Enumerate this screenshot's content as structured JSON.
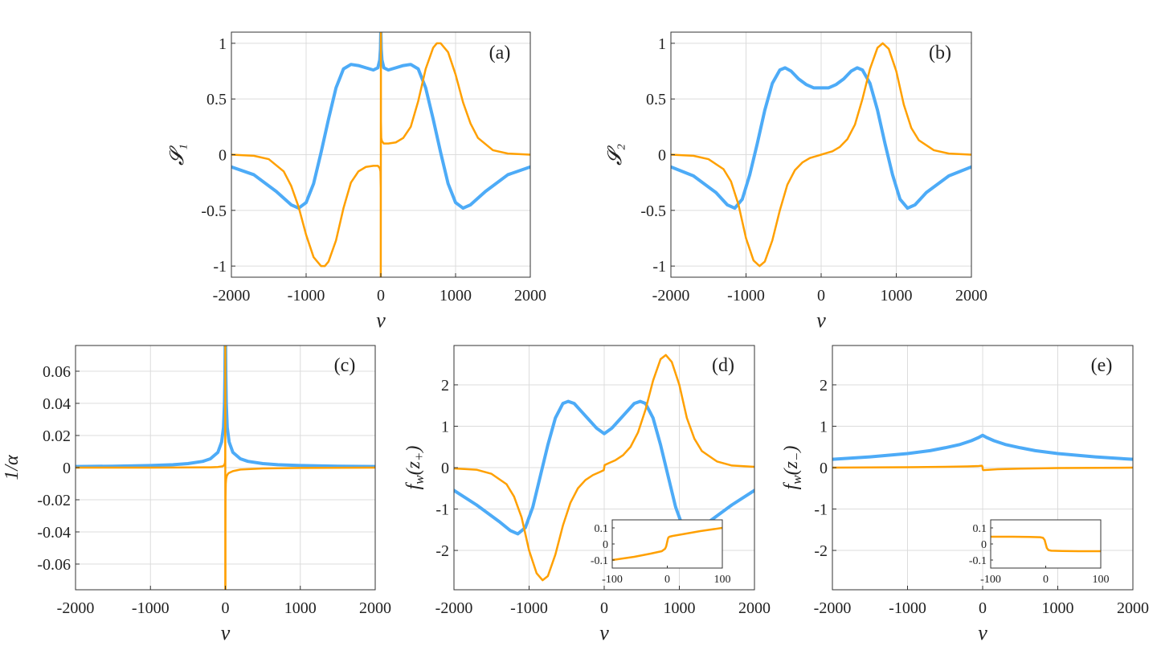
{
  "colors": {
    "series1": "#4dabf7",
    "series2": "#ffa000",
    "grid": "#dcdcdc",
    "frame": "#333333"
  },
  "chart_data": [
    {
      "id": "a",
      "type": "line",
      "panel_label": "(a)",
      "xlabel": "ν",
      "ylabel": "𝓢₁",
      "xlim": [
        -2000,
        2000
      ],
      "ylim": [
        -1.1,
        1.1
      ],
      "xticks": [
        -2000,
        -1000,
        0,
        1000,
        2000
      ],
      "xtick_labels": [
        "-2000",
        "-1000",
        "0",
        "1000",
        "2000"
      ],
      "yticks": [
        -1,
        -0.5,
        0,
        0.5,
        1
      ],
      "ytick_labels": [
        "-1",
        "-0.5",
        "0",
        "0.5",
        "1"
      ],
      "grid": true,
      "series": [
        {
          "color": "series1",
          "width": 4,
          "x": [
            -2000,
            -1700,
            -1400,
            -1200,
            -1100,
            -1000,
            -900,
            -800,
            -700,
            -600,
            -500,
            -400,
            -300,
            -200,
            -100,
            -40,
            -15,
            -5,
            -1,
            1,
            5,
            15,
            40,
            100,
            200,
            300,
            400,
            500,
            600,
            700,
            800,
            900,
            1000,
            1100,
            1200,
            1400,
            1700,
            2000
          ],
          "y": [
            -0.11,
            -0.18,
            -0.33,
            -0.45,
            -0.48,
            -0.43,
            -0.26,
            0.02,
            0.32,
            0.6,
            0.77,
            0.81,
            0.8,
            0.78,
            0.76,
            0.78,
            0.85,
            0.95,
            1.1,
            1.1,
            0.95,
            0.85,
            0.78,
            0.76,
            0.78,
            0.8,
            0.81,
            0.77,
            0.6,
            0.32,
            0.02,
            -0.26,
            -0.43,
            -0.48,
            -0.45,
            -0.33,
            -0.18,
            -0.11
          ]
        },
        {
          "color": "series2",
          "width": 2.5,
          "x": [
            -2000,
            -1700,
            -1500,
            -1300,
            -1200,
            -1100,
            -1000,
            -900,
            -800,
            -750,
            -700,
            -600,
            -500,
            -400,
            -300,
            -200,
            -100,
            -40,
            -15,
            -5,
            -1,
            -1,
            1,
            1,
            5,
            15,
            40,
            100,
            200,
            300,
            400,
            500,
            600,
            700,
            750,
            800,
            900,
            1000,
            1100,
            1200,
            1300,
            1500,
            1700,
            2000
          ],
          "y": [
            0.0,
            -0.01,
            -0.04,
            -0.15,
            -0.28,
            -0.47,
            -0.72,
            -0.92,
            -1.0,
            -1.0,
            -0.96,
            -0.77,
            -0.48,
            -0.25,
            -0.15,
            -0.11,
            -0.1,
            -0.1,
            -0.12,
            -0.15,
            -0.3,
            -1.1,
            1.1,
            0.3,
            0.15,
            0.12,
            0.1,
            0.1,
            0.11,
            0.15,
            0.25,
            0.48,
            0.77,
            0.96,
            1.0,
            1.0,
            0.92,
            0.72,
            0.47,
            0.28,
            0.15,
            0.04,
            0.01,
            0.0
          ]
        }
      ]
    },
    {
      "id": "b",
      "type": "line",
      "panel_label": "(b)",
      "xlabel": "ν",
      "ylabel": "𝓢₂",
      "xlim": [
        -2000,
        2000
      ],
      "ylim": [
        -1.1,
        1.1
      ],
      "xticks": [
        -2000,
        -1000,
        0,
        1000,
        2000
      ],
      "xtick_labels": [
        "-2000",
        "-1000",
        "0",
        "1000",
        "2000"
      ],
      "yticks": [
        -1,
        -0.5,
        0,
        0.5,
        1
      ],
      "ytick_labels": [
        "-1",
        "-0.5",
        "0",
        "0.5",
        "1"
      ],
      "grid": true,
      "series": [
        {
          "color": "series1",
          "width": 4,
          "x": [
            -2000,
            -1700,
            -1400,
            -1250,
            -1150,
            -1050,
            -950,
            -850,
            -750,
            -650,
            -550,
            -480,
            -400,
            -300,
            -200,
            -100,
            0,
            100,
            200,
            300,
            400,
            480,
            550,
            650,
            750,
            850,
            950,
            1050,
            1150,
            1250,
            1400,
            1700,
            2000
          ],
          "y": [
            -0.11,
            -0.19,
            -0.34,
            -0.45,
            -0.48,
            -0.4,
            -0.18,
            0.1,
            0.4,
            0.64,
            0.76,
            0.78,
            0.75,
            0.68,
            0.63,
            0.6,
            0.6,
            0.6,
            0.63,
            0.68,
            0.75,
            0.78,
            0.76,
            0.64,
            0.4,
            0.1,
            -0.18,
            -0.4,
            -0.48,
            -0.45,
            -0.34,
            -0.19,
            -0.11
          ]
        },
        {
          "color": "series2",
          "width": 2.5,
          "x": [
            -2000,
            -1700,
            -1500,
            -1300,
            -1200,
            -1100,
            -1000,
            -900,
            -820,
            -750,
            -650,
            -550,
            -450,
            -350,
            -250,
            -150,
            -50,
            0,
            50,
            150,
            250,
            350,
            450,
            550,
            650,
            750,
            820,
            900,
            1000,
            1100,
            1200,
            1300,
            1500,
            1700,
            2000
          ],
          "y": [
            0.0,
            -0.01,
            -0.04,
            -0.13,
            -0.24,
            -0.45,
            -0.75,
            -0.95,
            -1.0,
            -0.96,
            -0.77,
            -0.5,
            -0.27,
            -0.14,
            -0.07,
            -0.03,
            -0.01,
            0.0,
            0.01,
            0.03,
            0.07,
            0.14,
            0.27,
            0.5,
            0.77,
            0.96,
            1.0,
            0.95,
            0.75,
            0.45,
            0.24,
            0.13,
            0.04,
            0.01,
            0.0
          ]
        }
      ]
    },
    {
      "id": "c",
      "type": "line",
      "panel_label": "(c)",
      "xlabel": "ν",
      "ylabel": "1/α",
      "xlim": [
        -2000,
        2000
      ],
      "ylim": [
        -0.076,
        0.076
      ],
      "xticks": [
        -2000,
        -1000,
        0,
        1000,
        2000
      ],
      "xtick_labels": [
        "-2000",
        "-1000",
        "0",
        "1000",
        "2000"
      ],
      "yticks": [
        -0.06,
        -0.04,
        -0.02,
        0,
        0.02,
        0.04,
        0.06
      ],
      "ytick_labels": [
        "-0.06",
        "-0.04",
        "-0.02",
        "0",
        "0.02",
        "0.04",
        "0.06"
      ],
      "grid": true,
      "series": [
        {
          "color": "series1",
          "width": 4,
          "x": [
            -2000,
            -1500,
            -1000,
            -700,
            -500,
            -300,
            -200,
            -100,
            -50,
            -25,
            -12,
            -6,
            -3,
            -1,
            1,
            3,
            6,
            12,
            25,
            50,
            100,
            200,
            300,
            500,
            700,
            1000,
            1500,
            2000
          ],
          "y": [
            0.0007,
            0.0009,
            0.0013,
            0.0018,
            0.0025,
            0.0039,
            0.0055,
            0.0095,
            0.016,
            0.025,
            0.04,
            0.058,
            0.076,
            0.076,
            0.076,
            0.076,
            0.058,
            0.04,
            0.025,
            0.016,
            0.0095,
            0.0055,
            0.0039,
            0.0025,
            0.0018,
            0.0013,
            0.0009,
            0.0007
          ]
        },
        {
          "color": "series2",
          "width": 2.5,
          "x": [
            -2000,
            -1000,
            -500,
            -200,
            -100,
            -40,
            -15,
            -5,
            -2,
            -1,
            -1,
            1,
            1,
            2,
            5,
            10,
            20,
            40,
            100,
            200,
            500,
            1000,
            2000
          ],
          "y": [
            0.0,
            0.0,
            0.0001,
            0.0002,
            0.0004,
            0.0008,
            0.0015,
            0.003,
            0.006,
            0.076,
            -0.076,
            -0.076,
            -0.04,
            -0.018,
            -0.01,
            -0.007,
            -0.005,
            -0.0035,
            -0.0022,
            -0.0012,
            -0.0005,
            -0.0002,
            0.0
          ]
        }
      ]
    },
    {
      "id": "d",
      "type": "line",
      "panel_label": "(d)",
      "xlabel": "ν",
      "ylabel": "f_w(z_+)",
      "xlim": [
        -2000,
        2000
      ],
      "ylim": [
        -2.95,
        2.95
      ],
      "xticks": [
        -2000,
        -1000,
        0,
        1000,
        2000
      ],
      "xtick_labels": [
        "-2000",
        "-1000",
        "0",
        "1000",
        "2000"
      ],
      "yticks": [
        -2,
        -1,
        0,
        1,
        2
      ],
      "ytick_labels": [
        "-2",
        "-1",
        "0",
        "1",
        "2"
      ],
      "grid": true,
      "series": [
        {
          "color": "series1",
          "width": 4,
          "x": [
            -2000,
            -1700,
            -1400,
            -1250,
            -1150,
            -1050,
            -950,
            -850,
            -750,
            -650,
            -550,
            -480,
            -400,
            -300,
            -200,
            -100,
            0,
            100,
            200,
            300,
            400,
            480,
            550,
            650,
            750,
            850,
            950,
            1050,
            1150,
            1250,
            1400,
            1700,
            2000
          ],
          "y": [
            -0.55,
            -0.9,
            -1.3,
            -1.52,
            -1.6,
            -1.45,
            -0.95,
            -0.2,
            0.55,
            1.2,
            1.55,
            1.6,
            1.55,
            1.35,
            1.15,
            0.95,
            0.82,
            0.95,
            1.15,
            1.35,
            1.55,
            1.6,
            1.55,
            1.2,
            0.55,
            -0.2,
            -0.95,
            -1.45,
            -1.6,
            -1.52,
            -1.3,
            -0.9,
            -0.55
          ]
        },
        {
          "color": "series2",
          "width": 2.5,
          "x": [
            -2000,
            -1700,
            -1500,
            -1300,
            -1200,
            -1100,
            -1000,
            -900,
            -820,
            -750,
            -650,
            -550,
            -450,
            -350,
            -250,
            -150,
            -50,
            -5,
            5,
            50,
            150,
            250,
            350,
            450,
            550,
            650,
            750,
            820,
            900,
            1000,
            1100,
            1200,
            1300,
            1500,
            1700,
            2000
          ],
          "y": [
            -0.02,
            -0.05,
            -0.15,
            -0.4,
            -0.7,
            -1.2,
            -2.0,
            -2.55,
            -2.72,
            -2.62,
            -2.1,
            -1.4,
            -0.85,
            -0.5,
            -0.3,
            -0.18,
            -0.1,
            -0.06,
            0.06,
            0.1,
            0.18,
            0.3,
            0.5,
            0.85,
            1.4,
            2.1,
            2.62,
            2.72,
            2.55,
            2.0,
            1.2,
            0.7,
            0.4,
            0.15,
            0.05,
            0.02
          ]
        }
      ],
      "inset": {
        "xlim": [
          -100,
          100
        ],
        "ylim": [
          -0.15,
          0.15
        ],
        "xticks": [
          -100,
          0,
          100
        ],
        "xtick_labels": [
          "-100",
          "0",
          "100"
        ],
        "yticks": [
          -0.1,
          0,
          0.1
        ],
        "ytick_labels": [
          "-0.1",
          "0",
          "0.1"
        ],
        "series": [
          {
            "color": "series2",
            "width": 2.5,
            "x": [
              -100,
              -60,
              -30,
              -10,
              -4,
              -2,
              -1,
              1,
              2,
              4,
              10,
              30,
              60,
              100
            ],
            "y": [
              -0.1,
              -0.08,
              -0.06,
              -0.045,
              -0.03,
              -0.015,
              0.0,
              0.03,
              0.04,
              0.045,
              0.05,
              0.062,
              0.08,
              0.1
            ]
          }
        ]
      }
    },
    {
      "id": "e",
      "type": "line",
      "panel_label": "(e)",
      "xlabel": "ν",
      "ylabel": "f_w(z_−)",
      "xlim": [
        -2000,
        2000
      ],
      "ylim": [
        -2.95,
        2.95
      ],
      "xticks": [
        -2000,
        -1000,
        0,
        1000,
        2000
      ],
      "xtick_labels": [
        "-2000",
        "-1000",
        "0",
        "1000",
        "2000"
      ],
      "yticks": [
        -2,
        -1,
        0,
        1,
        2
      ],
      "ytick_labels": [
        "-2",
        "-1",
        "0",
        "1",
        "2"
      ],
      "grid": true,
      "series": [
        {
          "color": "series1",
          "width": 4,
          "x": [
            -2000,
            -1500,
            -1000,
            -700,
            -500,
            -300,
            -150,
            -50,
            0,
            50,
            150,
            300,
            500,
            700,
            1000,
            1500,
            2000
          ],
          "y": [
            0.2,
            0.26,
            0.34,
            0.41,
            0.48,
            0.56,
            0.65,
            0.73,
            0.78,
            0.73,
            0.65,
            0.56,
            0.48,
            0.41,
            0.34,
            0.26,
            0.2
          ]
        },
        {
          "color": "series2",
          "width": 2.5,
          "x": [
            -2000,
            -1000,
            -500,
            -200,
            -50,
            -10,
            -2,
            2,
            10,
            50,
            200,
            500,
            1000,
            2000
          ],
          "y": [
            0.0,
            0.01,
            0.02,
            0.03,
            0.04,
            0.045,
            0.03,
            -0.05,
            -0.06,
            -0.055,
            -0.04,
            -0.025,
            -0.01,
            0.0
          ]
        }
      ],
      "inset": {
        "xlim": [
          -100,
          100
        ],
        "ylim": [
          -0.15,
          0.15
        ],
        "xticks": [
          -100,
          0,
          100
        ],
        "xtick_labels": [
          "-100",
          "0",
          "100"
        ],
        "yticks": [
          -0.1,
          0,
          0.1
        ],
        "ytick_labels": [
          "-0.1",
          "0",
          "0.1"
        ],
        "series": [
          {
            "color": "series2",
            "width": 2.5,
            "x": [
              -100,
              -60,
              -30,
              -10,
              -5,
              -2,
              0,
              2,
              5,
              10,
              30,
              60,
              100
            ],
            "y": [
              0.045,
              0.045,
              0.044,
              0.042,
              0.038,
              0.025,
              0.0,
              -0.025,
              -0.038,
              -0.042,
              -0.044,
              -0.045,
              -0.045
            ]
          }
        ]
      }
    }
  ]
}
